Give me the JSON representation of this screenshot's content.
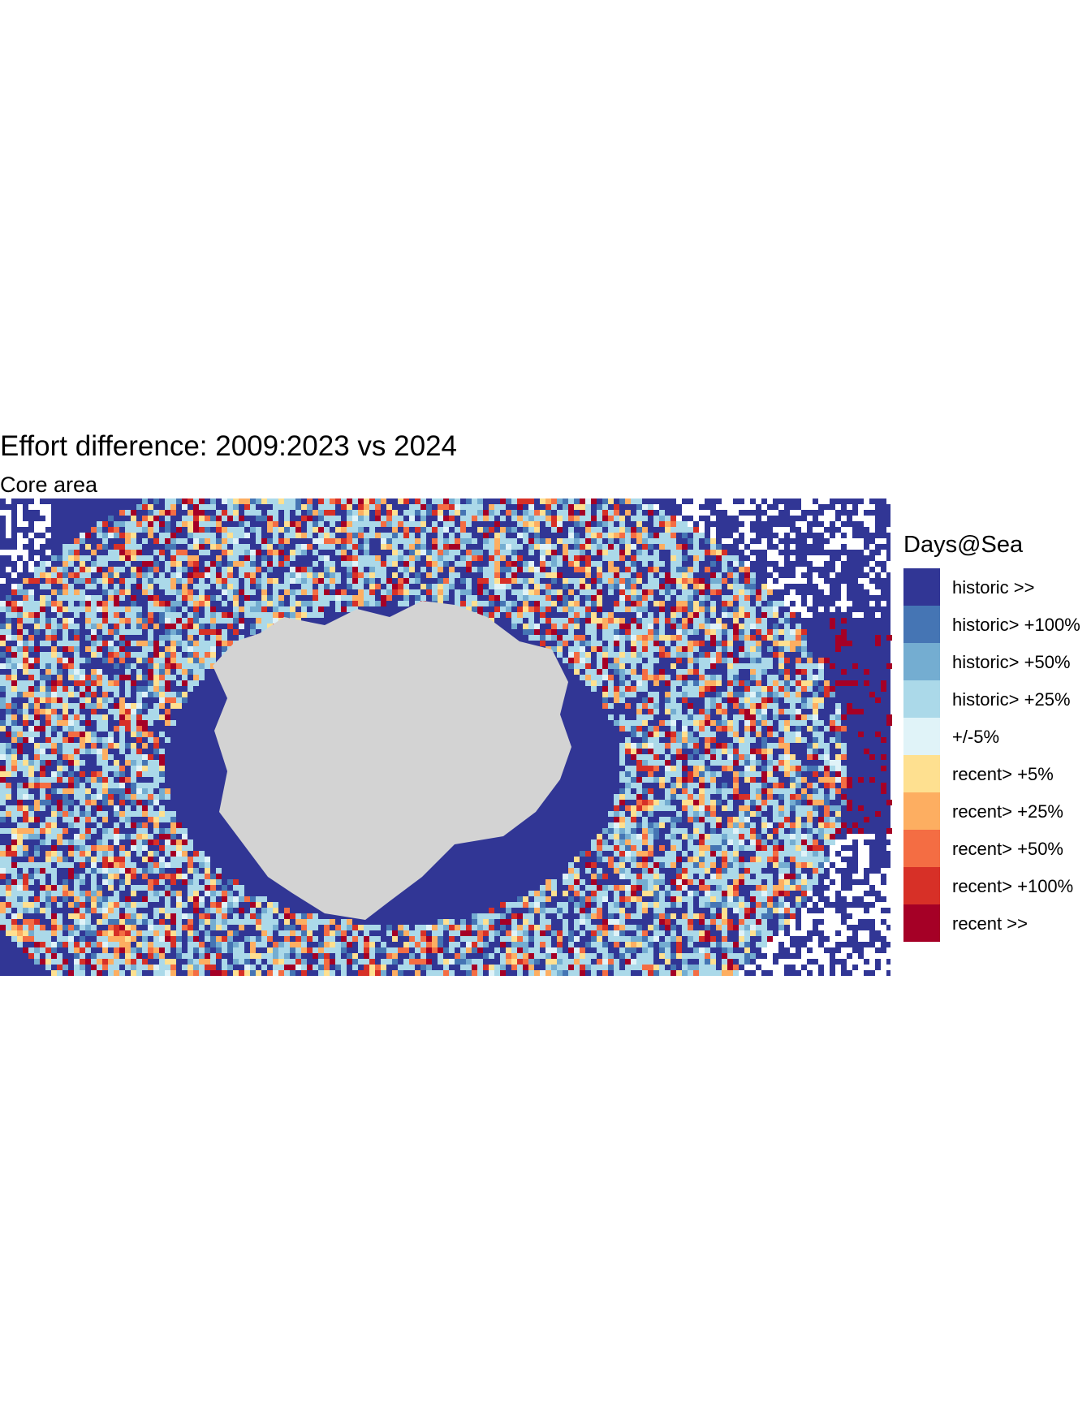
{
  "title": "Effort difference: 2009:2023 vs 2024",
  "subtitle": "Core area",
  "legend": {
    "title": "Days@Sea",
    "items": [
      {
        "label": "historic >>",
        "color": "#313695"
      },
      {
        "label": "historic> +100%",
        "color": "#4575b4"
      },
      {
        "label": "historic> +50%",
        "color": "#74add1"
      },
      {
        "label": "historic> +25%",
        "color": "#abd9e9"
      },
      {
        "label": "+/-5%",
        "color": "#e0f3f8"
      },
      {
        "label": "recent> +5%",
        "color": "#fee090"
      },
      {
        "label": "recent> +25%",
        "color": "#fdae61"
      },
      {
        "label": "recent> +50%",
        "color": "#f46d43"
      },
      {
        "label": "recent> +100%",
        "color": "#d73027"
      },
      {
        "label": "recent >>",
        "color": "#a50026"
      }
    ]
  }
}
